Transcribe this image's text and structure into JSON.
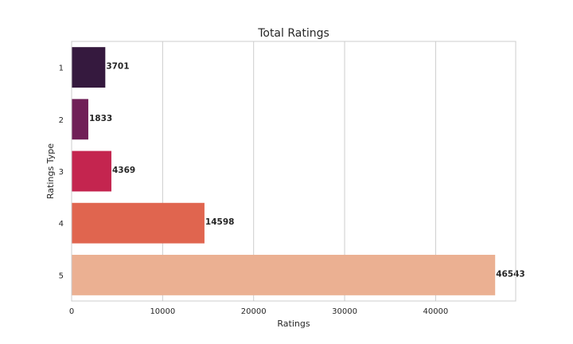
{
  "chart_data": {
    "type": "bar",
    "orientation": "horizontal",
    "title": "Total Ratings",
    "xlabel": "Ratings",
    "ylabel": "Ratings Type",
    "categories": [
      "1",
      "2",
      "3",
      "4",
      "5"
    ],
    "values": [
      3701,
      1833,
      4369,
      14598,
      46543
    ],
    "data_labels": [
      "3701",
      "1833",
      "4369",
      "14598",
      "46543"
    ],
    "xlim": [
      0,
      48800
    ],
    "xticks": [
      0,
      10000,
      20000,
      30000,
      40000
    ],
    "xtick_labels": [
      "0",
      "10000",
      "20000",
      "30000",
      "40000"
    ],
    "grid": "vertical",
    "colors": [
      "#35193e",
      "#701f57",
      "#c4254f",
      "#e0654f",
      "#ebb092"
    ]
  }
}
